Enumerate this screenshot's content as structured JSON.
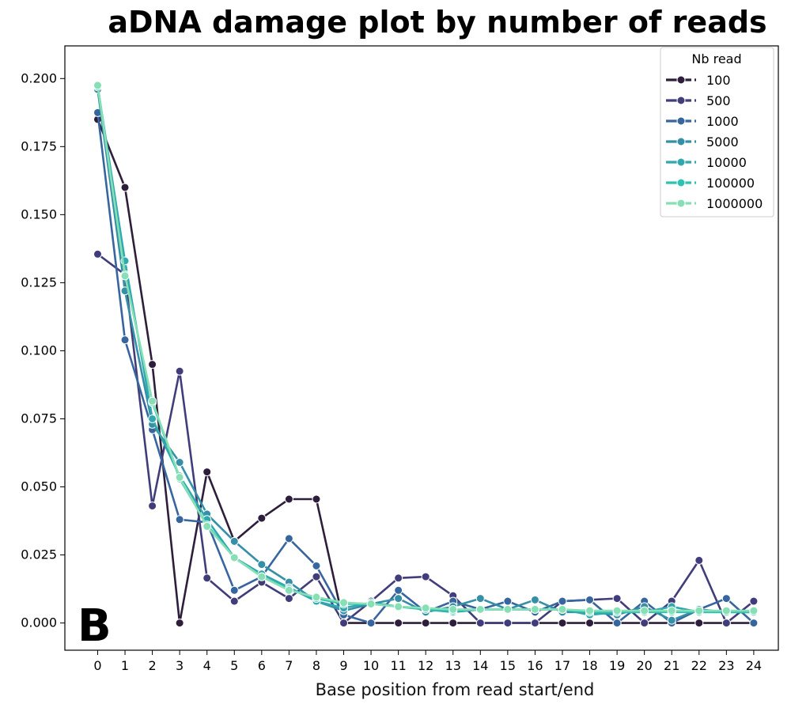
{
  "chart_data": {
    "type": "line",
    "title": "aDNA damage plot by number of reads",
    "xlabel": "Base position from read start/end",
    "ylabel": "",
    "panel_label": "B",
    "x": [
      0,
      1,
      2,
      3,
      4,
      5,
      6,
      7,
      8,
      9,
      10,
      11,
      12,
      13,
      14,
      15,
      16,
      17,
      18,
      19,
      20,
      21,
      22,
      23,
      24
    ],
    "x_ticks": [
      "0",
      "1",
      "2",
      "3",
      "4",
      "5",
      "6",
      "7",
      "8",
      "9",
      "10",
      "11",
      "12",
      "13",
      "14",
      "15",
      "16",
      "17",
      "18",
      "19",
      "20",
      "21",
      "22",
      "23",
      "24"
    ],
    "ylim": [
      -0.01,
      0.212
    ],
    "y_ticks": [
      0.0,
      0.025,
      0.05,
      0.075,
      0.1,
      0.125,
      0.15,
      0.175,
      0.2
    ],
    "y_tick_labels": [
      "0.000",
      "0.025",
      "0.050",
      "0.075",
      "0.100",
      "0.125",
      "0.150",
      "0.175",
      "0.200"
    ],
    "grid": false,
    "legend": {
      "title": "Nb read",
      "position": "top-right"
    },
    "series": [
      {
        "name": "100",
        "color": "#2e1e3b",
        "values": [
          0.185,
          0.16,
          0.095,
          0.0,
          0.0555,
          0.03,
          0.0385,
          0.0455,
          0.0455,
          0.0,
          0.0,
          0.0,
          0.0,
          0.0,
          0.0,
          0.0,
          0.0,
          0.0,
          0.0,
          0.0,
          0.0,
          0.0,
          0.0,
          0.0,
          0.0
        ]
      },
      {
        "name": "500",
        "color": "#413d7b",
        "values": [
          0.1355,
          0.128,
          0.043,
          0.0925,
          0.0165,
          0.008,
          0.015,
          0.009,
          0.017,
          0.0,
          0.008,
          0.0165,
          0.017,
          0.01,
          0.0,
          0.0,
          0.0,
          0.008,
          0.0085,
          0.009,
          0.0,
          0.008,
          0.023,
          0.0,
          0.008
        ]
      },
      {
        "name": "1000",
        "color": "#37659e",
        "values": [
          0.1875,
          0.104,
          0.071,
          0.038,
          0.037,
          0.012,
          0.017,
          0.031,
          0.021,
          0.003,
          0.0,
          0.012,
          0.004,
          0.008,
          0.005,
          0.008,
          0.004,
          0.008,
          0.0085,
          0.0,
          0.008,
          0.0,
          0.005,
          0.009,
          0.0
        ]
      },
      {
        "name": "5000",
        "color": "#348fa7",
        "values": [
          0.196,
          0.122,
          0.073,
          0.059,
          0.04,
          0.03,
          0.0215,
          0.015,
          0.008,
          0.0045,
          0.007,
          0.009,
          0.004,
          0.006,
          0.009,
          0.005,
          0.0085,
          0.004,
          0.004,
          0.003,
          0.006,
          0.001,
          0.005,
          0.004,
          0.004
        ]
      },
      {
        "name": "10000",
        "color": "#2fa8b0",
        "values": [
          0.197,
          0.133,
          0.075,
          0.054,
          0.038,
          0.024,
          0.018,
          0.013,
          0.008,
          0.0055,
          0.0075,
          0.006,
          0.005,
          0.004,
          0.005,
          0.005,
          0.005,
          0.005,
          0.003,
          0.004,
          0.004,
          0.006,
          0.004,
          0.004,
          0.004
        ]
      },
      {
        "name": "100000",
        "color": "#2ec2b0",
        "values": [
          0.1975,
          0.128,
          0.081,
          0.053,
          0.036,
          0.024,
          0.017,
          0.0125,
          0.009,
          0.007,
          0.007,
          0.006,
          0.005,
          0.0045,
          0.005,
          0.005,
          0.005,
          0.005,
          0.004,
          0.004,
          0.004,
          0.004,
          0.004,
          0.004,
          0.004
        ]
      },
      {
        "name": "1000000",
        "color": "#86dfb5",
        "values": [
          0.1975,
          0.1275,
          0.0815,
          0.0535,
          0.0355,
          0.024,
          0.017,
          0.012,
          0.0095,
          0.0075,
          0.007,
          0.006,
          0.0055,
          0.005,
          0.005,
          0.005,
          0.005,
          0.005,
          0.0045,
          0.0045,
          0.0045,
          0.0045,
          0.0045,
          0.0045,
          0.0045
        ]
      }
    ]
  }
}
